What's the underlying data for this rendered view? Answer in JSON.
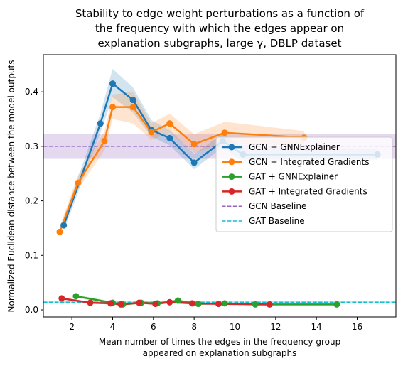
{
  "chart_data": {
    "type": "line",
    "title_lines": [
      "Stability to edge weight perturbations as a function of",
      "the frequency with which the edges appear on",
      "explanation subgraphs, large γ, DBLP dataset"
    ],
    "xlabel_lines": [
      "Mean number of times the edges in the frequency group",
      "appeared on explanation subgraphs"
    ],
    "ylabel": "Normalized Euclidean distance between the model outputs",
    "xlim": [
      0.6,
      17.9
    ],
    "ylim": [
      -0.013,
      0.468
    ],
    "x_ticks": [
      2,
      4,
      6,
      8,
      10,
      12,
      14,
      16
    ],
    "y_ticks": [
      0.0,
      0.1,
      0.2,
      0.3,
      0.4
    ],
    "x_tick_labels": [
      "2",
      "4",
      "6",
      "8",
      "10",
      "12",
      "14",
      "16"
    ],
    "y_tick_labels": [
      "0.0",
      "0.1",
      "0.2",
      "0.3",
      "0.4"
    ],
    "series": [
      {
        "name": "GCN + GNNExplainer",
        "color": "#1f77b4",
        "x": [
          1.6,
          3.4,
          4.0,
          5.0,
          5.9,
          6.8,
          8.0,
          9.4,
          10.4,
          17.0
        ],
        "y": [
          0.155,
          0.342,
          0.415,
          0.385,
          0.33,
          0.315,
          0.27,
          0.31,
          0.285,
          0.285
        ],
        "lower": [
          0.145,
          0.325,
          0.39,
          0.362,
          0.318,
          0.302,
          0.258,
          0.298,
          0.272,
          0.275
        ],
        "upper": [
          0.168,
          0.36,
          0.442,
          0.408,
          0.348,
          0.33,
          0.286,
          0.323,
          0.298,
          0.296
        ]
      },
      {
        "name": "GCN + Integrated Gradients",
        "color": "#ff7f0e",
        "x": [
          1.4,
          2.3,
          3.6,
          4.0,
          5.0,
          5.9,
          6.8,
          8.0,
          9.5,
          13.4
        ],
        "y": [
          0.143,
          0.233,
          0.31,
          0.372,
          0.372,
          0.326,
          0.342,
          0.304,
          0.325,
          0.316
        ],
        "lower": [
          0.133,
          0.221,
          0.293,
          0.35,
          0.342,
          0.312,
          0.325,
          0.288,
          0.306,
          0.301
        ],
        "upper": [
          0.153,
          0.247,
          0.327,
          0.395,
          0.4,
          0.342,
          0.36,
          0.322,
          0.345,
          0.328
        ]
      },
      {
        "name": "GAT + GNNExplainer",
        "color": "#2ca02c",
        "x": [
          2.2,
          4.0,
          4.5,
          5.4,
          6.2,
          7.2,
          8.2,
          9.5,
          11.0,
          15.0
        ],
        "y": [
          0.025,
          0.013,
          0.01,
          0.013,
          0.012,
          0.017,
          0.011,
          0.012,
          0.01,
          0.01
        ],
        "lower": [
          0.022,
          0.011,
          0.008,
          0.011,
          0.01,
          0.015,
          0.009,
          0.01,
          0.008,
          0.008
        ],
        "upper": [
          0.028,
          0.015,
          0.012,
          0.015,
          0.014,
          0.019,
          0.013,
          0.014,
          0.012,
          0.012
        ]
      },
      {
        "name": "GAT + Integrated Gradients",
        "color": "#d62728",
        "x": [
          1.5,
          2.9,
          3.9,
          4.4,
          5.3,
          6.1,
          6.8,
          7.9,
          9.2,
          11.7
        ],
        "y": [
          0.021,
          0.013,
          0.012,
          0.01,
          0.013,
          0.011,
          0.014,
          0.012,
          0.011,
          0.01
        ],
        "lower": [
          0.019,
          0.011,
          0.01,
          0.008,
          0.011,
          0.009,
          0.012,
          0.01,
          0.009,
          0.008
        ],
        "upper": [
          0.023,
          0.015,
          0.014,
          0.012,
          0.015,
          0.013,
          0.016,
          0.014,
          0.013,
          0.012
        ]
      }
    ],
    "baselines": [
      {
        "name": "GCN Baseline",
        "color": "#9467bd",
        "y": 0.3,
        "band": [
          0.277,
          0.322
        ]
      },
      {
        "name": "GAT Baseline",
        "color": "#17becf",
        "y": 0.014,
        "band": [
          0.012,
          0.016
        ]
      }
    ],
    "legend_position": "center-right",
    "grid": false
  }
}
